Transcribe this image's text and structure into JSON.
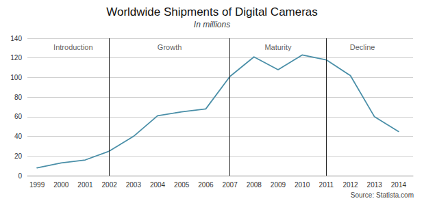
{
  "chart_data": {
    "type": "line",
    "title": "Worldwide Shipments of Digital Cameras",
    "subtitle": "In millions",
    "source": "Source: Statista.com",
    "x": [
      1999,
      2000,
      2001,
      2002,
      2003,
      2004,
      2005,
      2006,
      2007,
      2008,
      2009,
      2010,
      2011,
      2012,
      2013,
      2014
    ],
    "values": [
      8,
      13,
      16,
      25,
      40,
      61,
      65,
      68,
      101,
      121,
      108,
      123,
      118,
      102,
      60,
      45
    ],
    "color": "#4a8fa8",
    "xlim": [
      1998.6,
      2014.6
    ],
    "xticks": [
      1999,
      2000,
      2001,
      2002,
      2003,
      2004,
      2005,
      2006,
      2007,
      2008,
      2009,
      2010,
      2011,
      2012,
      2013,
      2014
    ],
    "ylim": [
      0,
      140
    ],
    "yticks": [
      0,
      20,
      40,
      60,
      80,
      100,
      120,
      140
    ],
    "grid": true,
    "vlines": {
      "x": [
        2002,
        2007,
        2011
      ],
      "color": "#222222"
    },
    "annotations": [
      {
        "text": "Introduction",
        "x": 2000.5,
        "y": 136
      },
      {
        "text": "Growth",
        "x": 2004.5,
        "y": 136
      },
      {
        "text": "Maturity",
        "x": 2009.0,
        "y": 136
      },
      {
        "text": "Decline",
        "x": 2012.5,
        "y": 136
      }
    ]
  }
}
